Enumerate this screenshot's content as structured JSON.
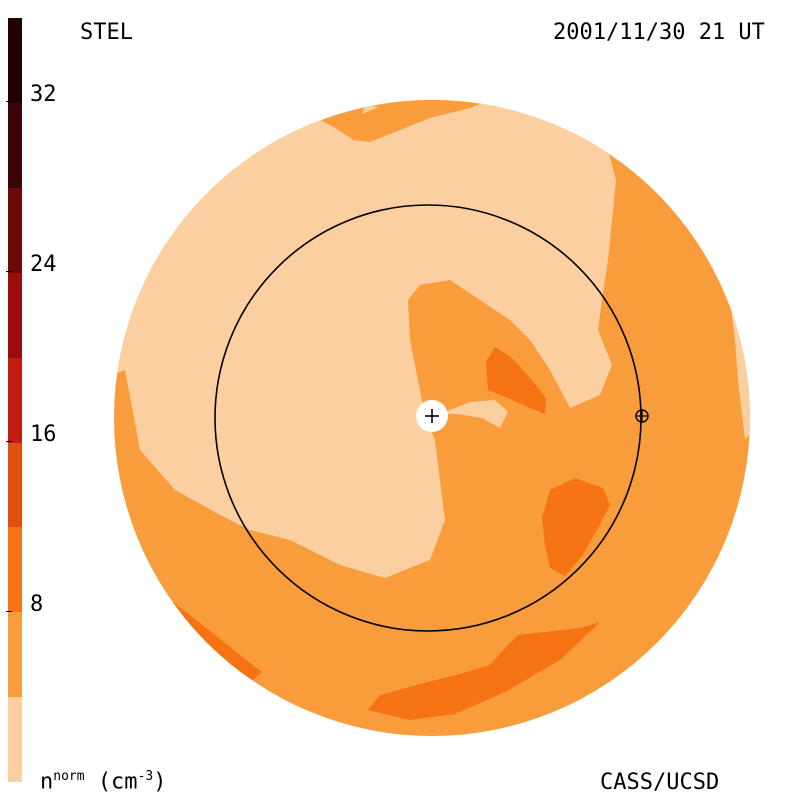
{
  "header": {
    "instrument": "STEL",
    "datetime": "2001/11/30 21 UT"
  },
  "footer": {
    "quantity": "n",
    "quantity_sup": "norm",
    "unit_prefix": "(cm",
    "unit_sup": "-3",
    "unit_suffix": ")",
    "credit": "CASS/UCSD"
  },
  "colorbar": {
    "ticks": [
      "32",
      "24",
      "16",
      "8"
    ],
    "colors": [
      "#fbcfa0",
      "#f99c3c",
      "#f57313",
      "#e0500f",
      "#c21d10",
      "#9b0d0b",
      "#6c0808",
      "#3d0505",
      "#200203"
    ]
  },
  "map": {
    "colors": {
      "lightest": "#fbcfa0",
      "light": "#f99c3c",
      "medium": "#f57313",
      "orbit": "#000000",
      "sun": "#ffffff"
    },
    "markers": [
      "sun-plus-icon",
      "earth-circled-plus-icon"
    ]
  }
}
